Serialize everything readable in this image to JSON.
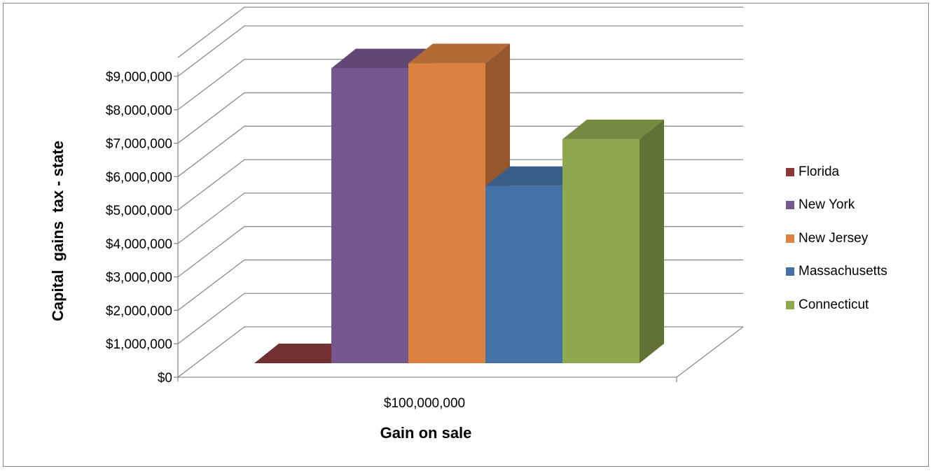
{
  "chart_data": {
    "type": "bar",
    "style": "3d-clustered-column",
    "xlabel": "Gain on sale",
    "ylabel": "Capital  gains  tax - state",
    "categories": [
      "$100,000,000"
    ],
    "ylim": [
      0,
      9000000
    ],
    "ytick_labels": [
      "$0",
      "$1,000,000",
      "$2,000,000",
      "$3,000,000",
      "$4,000,000",
      "$5,000,000",
      "$6,000,000",
      "$7,000,000",
      "$8,000,000",
      "$9,000,000"
    ],
    "grid": true,
    "legend_position": "right",
    "series": [
      {
        "name": "Florida",
        "values": [
          0
        ],
        "color": "#8B3A3A"
      },
      {
        "name": "New York",
        "values": [
          8820000
        ],
        "color": "#76578E"
      },
      {
        "name": "New Jersey",
        "values": [
          8970000
        ],
        "color": "#DC813F"
      },
      {
        "name": "Massachusetts",
        "values": [
          5300000
        ],
        "color": "#4472A6"
      },
      {
        "name": "Connecticut",
        "values": [
          6700000
        ],
        "color": "#8DA84E"
      }
    ]
  }
}
